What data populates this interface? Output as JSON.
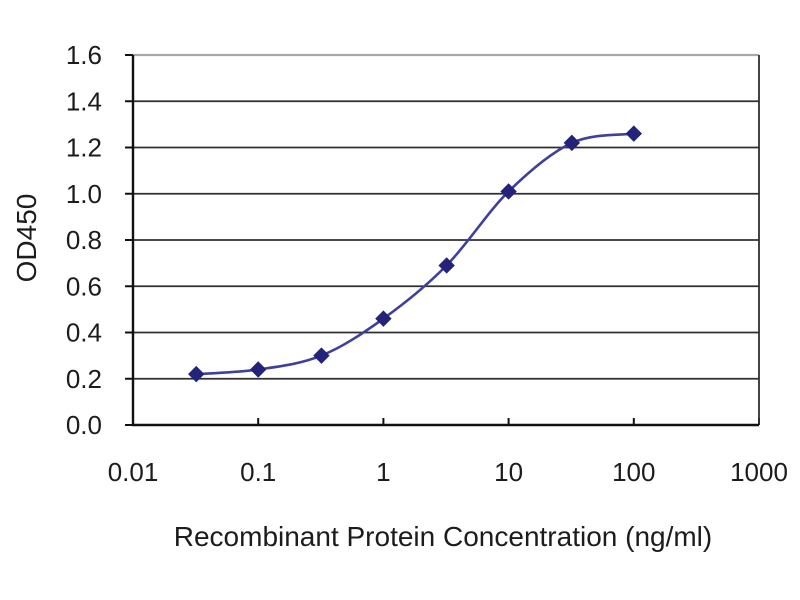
{
  "chart_data": {
    "type": "line",
    "title": "",
    "xlabel": "Recombinant Protein Concentration (ng/ml)",
    "ylabel": "OD450",
    "x_scale": "log",
    "xlim": [
      0.01,
      1000
    ],
    "ylim": [
      0.0,
      1.6
    ],
    "x_ticks": [
      0.01,
      0.1,
      1,
      10,
      100,
      1000
    ],
    "x_tick_labels": [
      "0.01",
      "0.1",
      "1",
      "10",
      "100",
      "1000"
    ],
    "y_ticks": [
      0.0,
      0.2,
      0.4,
      0.6,
      0.8,
      1.0,
      1.2,
      1.4,
      1.6
    ],
    "y_tick_labels": [
      "0.0",
      "0.2",
      "0.4",
      "0.6",
      "0.8",
      "1.0",
      "1.2",
      "1.4",
      "1.6"
    ],
    "grid": "horizontal",
    "legend": "none",
    "series": [
      {
        "name": "OD450",
        "marker": "diamond",
        "x": [
          0.032,
          0.1,
          0.32,
          1,
          3.2,
          10,
          32,
          100
        ],
        "y": [
          0.22,
          0.24,
          0.3,
          0.46,
          0.69,
          1.01,
          1.22,
          1.26
        ]
      }
    ],
    "colors": {
      "line": "#3F3F9C",
      "marker": "#23237A",
      "gridline": "#2f2f2f",
      "top_border": "#a8a8a8",
      "axis": "#111111",
      "background": "#ffffff",
      "text": "#1c1c1c"
    }
  }
}
